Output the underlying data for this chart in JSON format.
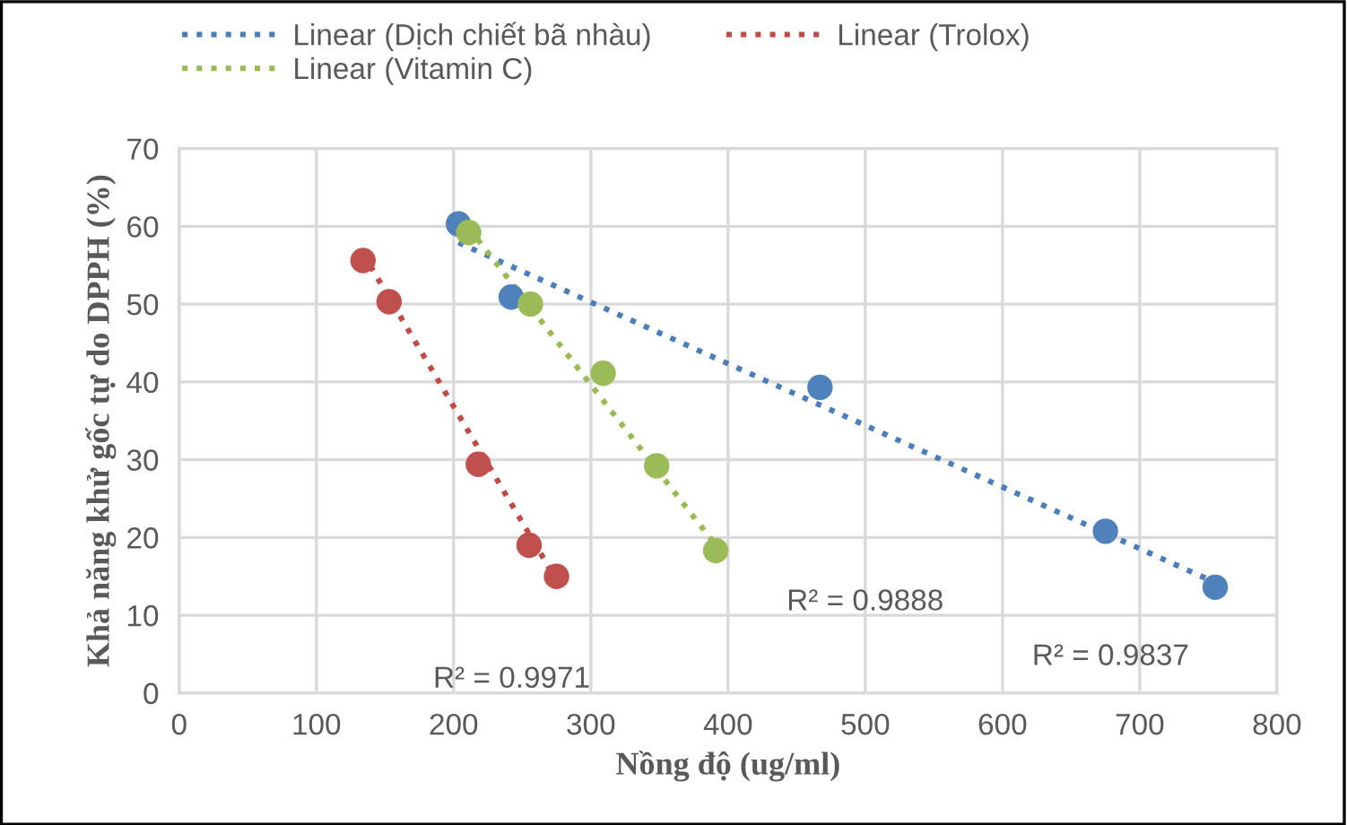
{
  "chart_data": {
    "type": "scatter",
    "xlabel": "Nồng độ (ug/ml)",
    "ylabel": "Khả năng khử gốc tự do DPPH (%)",
    "xlim": [
      0,
      800
    ],
    "xticks": [
      0,
      100,
      200,
      300,
      400,
      500,
      600,
      700,
      800
    ],
    "ylim": [
      0,
      70
    ],
    "yticks": [
      0,
      10,
      20,
      30,
      40,
      50,
      60,
      70
    ],
    "grid": true,
    "legend": "top",
    "marker": "circle",
    "series": [
      {
        "type": "line",
        "name": "Linear (Dịch chiết bã nhàu)",
        "color": "#4a7ebb",
        "line_style": "dotted",
        "marker": "none",
        "x": [
          203.5,
          755
        ],
        "values": [
          57.9,
          14.2
        ]
      },
      {
        "type": "line",
        "name": "Linear (Trolox)",
        "color": "#be4b48",
        "line_style": "dotted",
        "marker": "none",
        "x": [
          134,
          275
        ],
        "values": [
          56.5,
          14.5
        ]
      },
      {
        "type": "line",
        "name": "Linear (Vitamin C)",
        "color": "#98b954",
        "line_style": "dotted",
        "marker": "none",
        "x": [
          211,
          391
        ],
        "values": [
          59.8,
          19.0
        ]
      },
      {
        "color": "#4f81bd",
        "x": [
          203.5,
          242,
          467,
          675,
          755
        ],
        "values": [
          60.3,
          50.9,
          39.3,
          20.8,
          13.6
        ]
      },
      {
        "color": "#c0504d",
        "x": [
          134,
          153,
          218,
          255,
          275
        ],
        "values": [
          55.6,
          50.3,
          29.4,
          19.0,
          15.0
        ]
      },
      {
        "color": "#9bbb59",
        "x": [
          211,
          256,
          309,
          348,
          391
        ],
        "values": [
          59.2,
          50.0,
          41.1,
          29.2,
          18.3
        ]
      }
    ],
    "annotations": [
      "R² = 0.9837",
      "R² = 0.9971",
      "R² = 0.9888"
    ]
  }
}
